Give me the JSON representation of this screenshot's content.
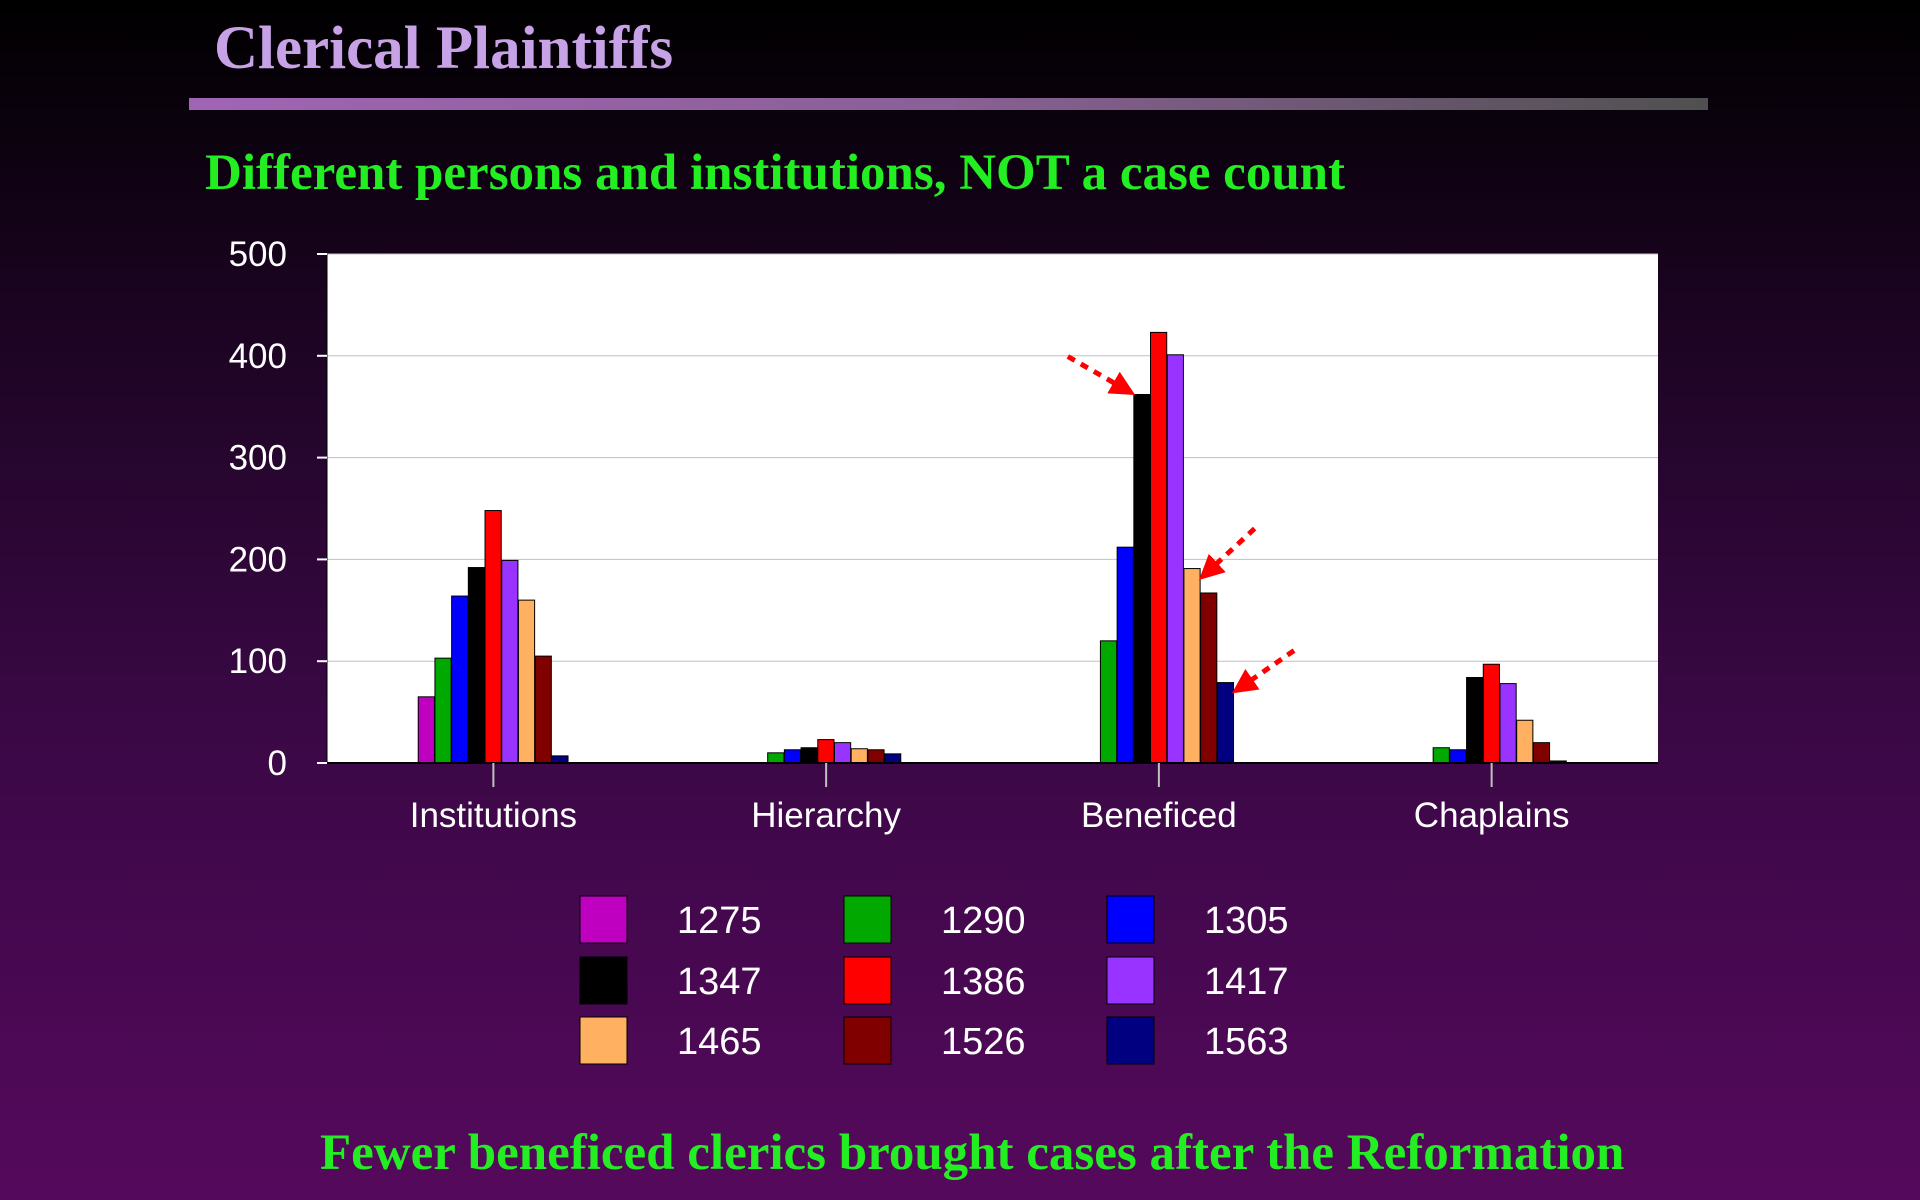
{
  "slide": {
    "title": "Clerical Plaintiffs",
    "subtitle": "Different persons and institutions, NOT a case count",
    "footer": "Fewer beneficed clerics brought cases after the Reformation"
  },
  "chart_data": {
    "type": "bar",
    "categories": [
      "Institutions",
      "Hierarchy",
      "Beneficed",
      "Chaplains"
    ],
    "ylim": [
      0,
      500
    ],
    "yticks": [
      0,
      100,
      200,
      300,
      400,
      500
    ],
    "grid": true,
    "legend_placement": "bottom",
    "series": [
      {
        "name": "1275",
        "color": "#c000c0",
        "values": [
          65,
          0,
          0,
          0
        ]
      },
      {
        "name": "1290",
        "color": "#00a800",
        "values": [
          103,
          10,
          120,
          15
        ]
      },
      {
        "name": "1305",
        "color": "#0000ff",
        "values": [
          164,
          13,
          212,
          13
        ]
      },
      {
        "name": "1347",
        "color": "#000000",
        "values": [
          192,
          15,
          362,
          84
        ]
      },
      {
        "name": "1386",
        "color": "#ff0000",
        "values": [
          248,
          23,
          423,
          97
        ]
      },
      {
        "name": "1417",
        "color": "#9933ff",
        "values": [
          199,
          20,
          401,
          78
        ]
      },
      {
        "name": "1465",
        "color": "#ffb060",
        "values": [
          160,
          14,
          191,
          42
        ]
      },
      {
        "name": "1526",
        "color": "#800000",
        "values": [
          105,
          13,
          167,
          20
        ]
      },
      {
        "name": "1563",
        "color": "#000080",
        "values": [
          7,
          9,
          79,
          2
        ]
      }
    ],
    "annotations": [
      {
        "type": "arrow",
        "category": "Beneficed",
        "series": "1347",
        "value": 362
      },
      {
        "type": "arrow",
        "category": "Beneficed",
        "series": "1465",
        "value": 191
      },
      {
        "type": "arrow",
        "category": "Beneficed",
        "series": "1563",
        "value": 79
      }
    ]
  }
}
